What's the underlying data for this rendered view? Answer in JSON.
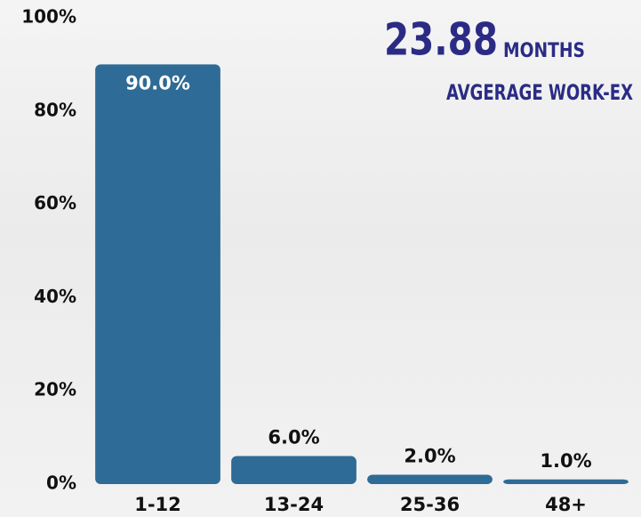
{
  "chart_data": {
    "type": "bar",
    "annotation": {
      "value": "23.88",
      "unit": "MONTHS",
      "caption": "AVGERAGE WORK-EX"
    },
    "categories": [
      "1-12",
      "13-24",
      "25-36",
      "48+"
    ],
    "values": [
      90,
      6,
      2,
      1
    ],
    "value_labels": [
      "90.0%",
      "6.0%",
      "2.0%",
      "1.0%"
    ],
    "color": "#2e6b96",
    "ylim": [
      0,
      100
    ],
    "yticks": [
      {
        "value": 0,
        "label": "0%"
      },
      {
        "value": 20,
        "label": "20%"
      },
      {
        "value": 40,
        "label": "40%"
      },
      {
        "value": 60,
        "label": "60%"
      },
      {
        "value": 80,
        "label": "80%"
      },
      {
        "value": 100,
        "label": "100%"
      }
    ],
    "grid": false
  }
}
